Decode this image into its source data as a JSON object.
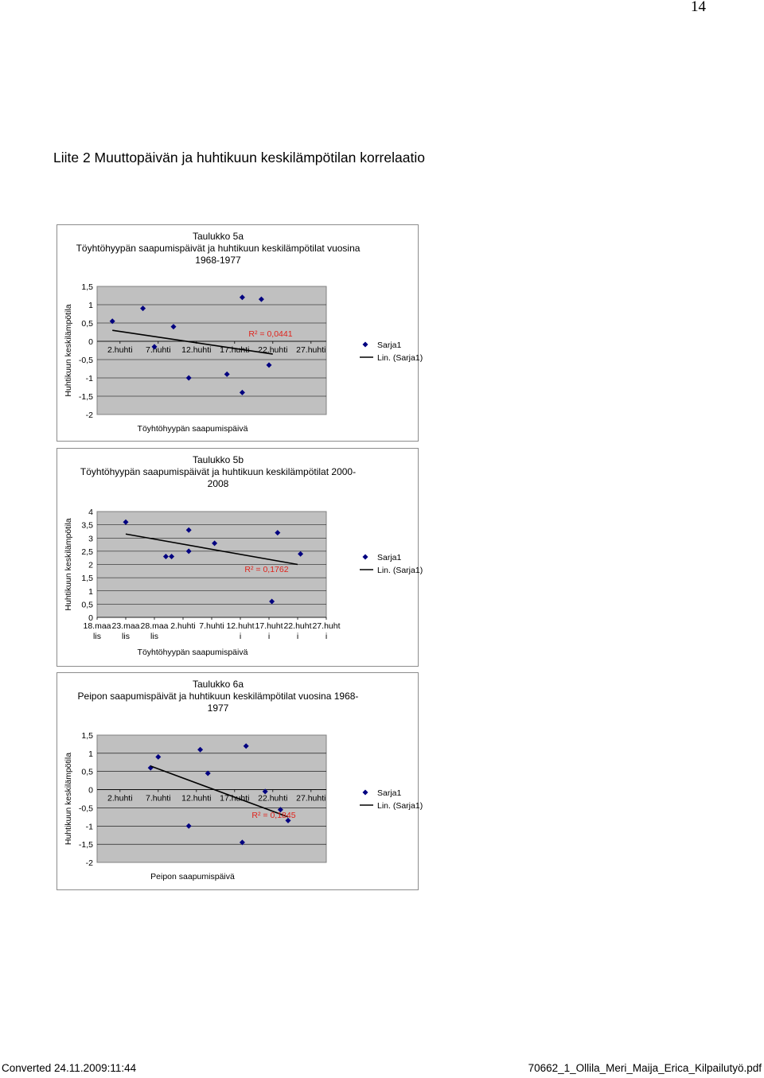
{
  "page_number": "14",
  "heading": "Liite 2 Muuttopäivän ja huhtikuun keskilämpötilan korrelaatio",
  "footer": {
    "left": "Converted 24.11.2009:11:44",
    "right": "70662_1_Ollila_Meri_Maija_Erica_Kilpailutyö.pdf"
  },
  "chart_data": [
    {
      "type": "scatter",
      "title": [
        "Taulukko 5a",
        "Töyhtöhyypän saapumispäivät ja huhtikuun keskilämpötilat vuosina",
        "1968-1977"
      ],
      "xlabel": "Töyhtöhyypän saapumispäivä",
      "ylabel": "Huhtikuun keskilämpötila",
      "x_unit": "day of April",
      "xlim": [
        -1,
        29
      ],
      "ylim": [
        -2,
        1.5
      ],
      "yticks": [
        "1,5",
        "1",
        "0,5",
        "0",
        "-0,5",
        "-1",
        "-1,5",
        "-2"
      ],
      "xticks": [
        {
          "value": 2,
          "label": [
            "2.huhti"
          ]
        },
        {
          "value": 7,
          "label": [
            "7.huhti"
          ]
        },
        {
          "value": 12,
          "label": [
            "12.huhti"
          ]
        },
        {
          "value": 17,
          "label": [
            "17.huhti"
          ]
        },
        {
          "value": 22,
          "label": [
            "22.huhti"
          ]
        },
        {
          "value": 27,
          "label": [
            "27.huhti"
          ]
        }
      ],
      "xaxis_at_zero": true,
      "series": [
        {
          "name": "Sarja1",
          "x": [
            1,
            5,
            6.5,
            9,
            11,
            16,
            18,
            18,
            20.5,
            21.5
          ],
          "y": [
            0.55,
            0.9,
            -0.15,
            0.4,
            -1.0,
            -0.9,
            1.2,
            -1.4,
            1.15,
            -0.65
          ]
        }
      ],
      "trendline": {
        "name": "Lin. (Sarja1)",
        "x": [
          1,
          22
        ],
        "y": [
          0.3,
          -0.35
        ]
      },
      "r2_label": "R² = 0,0441",
      "r2_color": "#e0221b",
      "legend": "right",
      "plot_color": "#c0c0c0",
      "marker_color": "#000080"
    },
    {
      "type": "scatter",
      "title": [
        "Taulukko 5b",
        "Töyhtöhyypän saapumispäivät ja huhtikuun keskilämpötilat 2000-",
        "2008"
      ],
      "xlabel": "Töyhtöhyypän saapumispäivä",
      "ylabel": "Huhtikuun keskilämpötila",
      "x_unit": "days from 18 March",
      "xlim": [
        0,
        40
      ],
      "ylim": [
        0,
        4
      ],
      "yticks": [
        "4",
        "3,5",
        "3",
        "2,5",
        "2",
        "1,5",
        "1",
        "0,5",
        "0"
      ],
      "xticks": [
        {
          "value": 0,
          "label": [
            "18.maa",
            "lis"
          ]
        },
        {
          "value": 5,
          "label": [
            "23.maa",
            "lis"
          ]
        },
        {
          "value": 10,
          "label": [
            "28.maa",
            "lis"
          ]
        },
        {
          "value": 15,
          "label": [
            "2.huhti"
          ]
        },
        {
          "value": 20,
          "label": [
            "7.huhti"
          ]
        },
        {
          "value": 25,
          "label": [
            "12.huht",
            "i"
          ]
        },
        {
          "value": 30,
          "label": [
            "17.huht",
            "i"
          ]
        },
        {
          "value": 35,
          "label": [
            "22.huht",
            "i"
          ]
        },
        {
          "value": 40,
          "label": [
            "27.huht",
            "i"
          ]
        }
      ],
      "xaxis_at_zero": true,
      "series": [
        {
          "name": "Sarja1",
          "x": [
            5,
            12,
            13,
            16,
            16,
            20.5,
            30.5,
            31.5,
            35.5
          ],
          "y": [
            3.6,
            2.3,
            2.3,
            3.3,
            2.5,
            2.8,
            0.6,
            3.2,
            2.4
          ]
        }
      ],
      "trendline": {
        "name": "Lin. (Sarja1)",
        "x": [
          5,
          35
        ],
        "y": [
          3.15,
          2.0
        ]
      },
      "r2_label": "R² = 0,1762",
      "r2_color": "#e0221b",
      "legend": "right",
      "plot_color": "#c0c0c0",
      "marker_color": "#000080"
    },
    {
      "type": "scatter",
      "title": [
        "Taulukko 6a",
        "Peipon saapumispäivät ja huhtikuun keskilämpötilat vuosina 1968-",
        "1977"
      ],
      "xlabel": "Peipon saapumispäivä",
      "ylabel": "Huhtikuun keskilämpötila",
      "x_unit": "day of April",
      "xlim": [
        -1,
        29
      ],
      "ylim": [
        -2,
        1.5
      ],
      "yticks": [
        "1,5",
        "1",
        "0,5",
        "0",
        "-0,5",
        "-1",
        "-1,5",
        "-2"
      ],
      "xticks": [
        {
          "value": 2,
          "label": [
            "2.huhti"
          ]
        },
        {
          "value": 7,
          "label": [
            "7.huhti"
          ]
        },
        {
          "value": 12,
          "label": [
            "12.huhti"
          ]
        },
        {
          "value": 17,
          "label": [
            "17.huhti"
          ]
        },
        {
          "value": 22,
          "label": [
            "22.huhti"
          ]
        },
        {
          "value": 27,
          "label": [
            "27.huhti"
          ]
        }
      ],
      "xaxis_at_zero": true,
      "series": [
        {
          "name": "Sarja1",
          "x": [
            6,
            7,
            11,
            12.5,
            13.5,
            18,
            18.5,
            21,
            23,
            24
          ],
          "y": [
            0.6,
            0.9,
            -1.0,
            1.1,
            0.45,
            -1.45,
            1.2,
            -0.05,
            -0.55,
            -0.85
          ]
        }
      ],
      "trendline": {
        "name": "Lin. (Sarja1)",
        "x": [
          6,
          24
        ],
        "y": [
          0.65,
          -0.75
        ]
      },
      "r2_label": "R² = 0,1845",
      "r2_color": "#e0221b",
      "legend": "right",
      "plot_color": "#c0c0c0",
      "marker_color": "#000080"
    }
  ]
}
